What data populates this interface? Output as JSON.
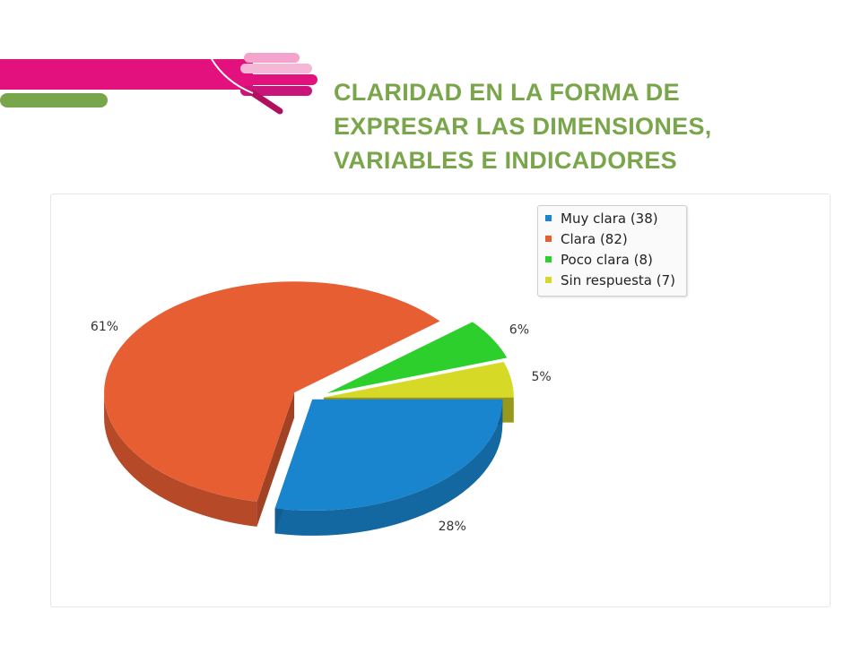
{
  "header": {
    "title_lines": [
      "CLARIDAD EN LA FORMA DE",
      "EXPRESAR  LAS DIMENSIONES,",
      "VARIABLES E INDICADORES"
    ]
  },
  "colors": {
    "pink": "#e2117e",
    "light_pink": "#f4a3cc",
    "magenta_dark": "#b0105e",
    "green_bar": "#7aa64b",
    "title": "#7aa64b"
  },
  "chart_data": {
    "type": "pie",
    "style": "3d, exploded",
    "title": "",
    "legend_position": "top-right",
    "categories": [
      "Muy clara",
      "Clara",
      "Poco clara",
      "Sin respuesta"
    ],
    "values": [
      38,
      82,
      8,
      7
    ],
    "percent_labels": [
      "28%",
      "61%",
      "6%",
      "5%"
    ],
    "legend": [
      "Muy clara (38)",
      "Clara (82)",
      "Poco clara (8)",
      "Sin respuesta (7)"
    ],
    "colors": [
      "#1a85cf",
      "#e85e33",
      "#2ccf2c",
      "#d6da27"
    ]
  }
}
